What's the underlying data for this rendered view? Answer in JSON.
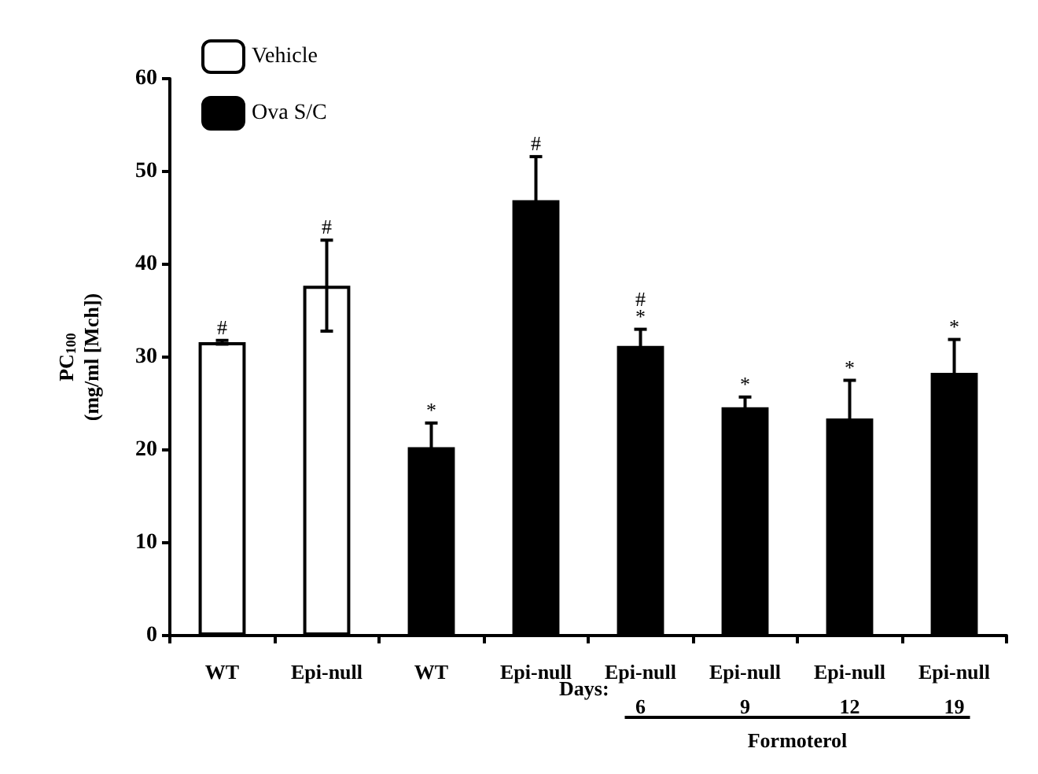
{
  "chart_data": {
    "type": "bar",
    "ylabel": "PC$_{100}$\n(mg/ml [Mch])",
    "categories": [
      "WT",
      "Epi-null",
      "WT",
      "Epi-null",
      "Epi-null\n6",
      "Epi-null\n9",
      "Epi-null\n12",
      "Epi-null\n19"
    ],
    "series": [
      {
        "name": "Vehicle",
        "color": "#ffffff",
        "values": [
          31.6,
          37.7,
          null,
          null,
          null,
          null,
          null,
          null
        ],
        "errors": [
          0.2,
          4.9,
          null,
          null,
          null,
          null,
          null,
          null
        ],
        "value_labels": [
          "#",
          "#",
          null,
          null,
          null,
          null,
          null,
          null
        ]
      },
      {
        "name": "Ova S/C",
        "color": "#000000",
        "values": [
          null,
          null,
          20.3,
          46.9,
          31.2,
          24.6,
          23.4,
          28.3
        ],
        "errors": [
          null,
          null,
          2.6,
          4.7,
          1.8,
          1.1,
          4.1,
          3.6
        ],
        "value_labels": [
          null,
          null,
          "*",
          "#",
          "#\n*",
          "*",
          "*",
          "*"
        ]
      }
    ],
    "ylim": [
      0,
      60
    ],
    "yticks": [
      0,
      10,
      20,
      30,
      40,
      50,
      60
    ],
    "grid": false,
    "legend": "top left",
    "annotations": [
      "Days:",
      "Formoterol"
    ]
  }
}
